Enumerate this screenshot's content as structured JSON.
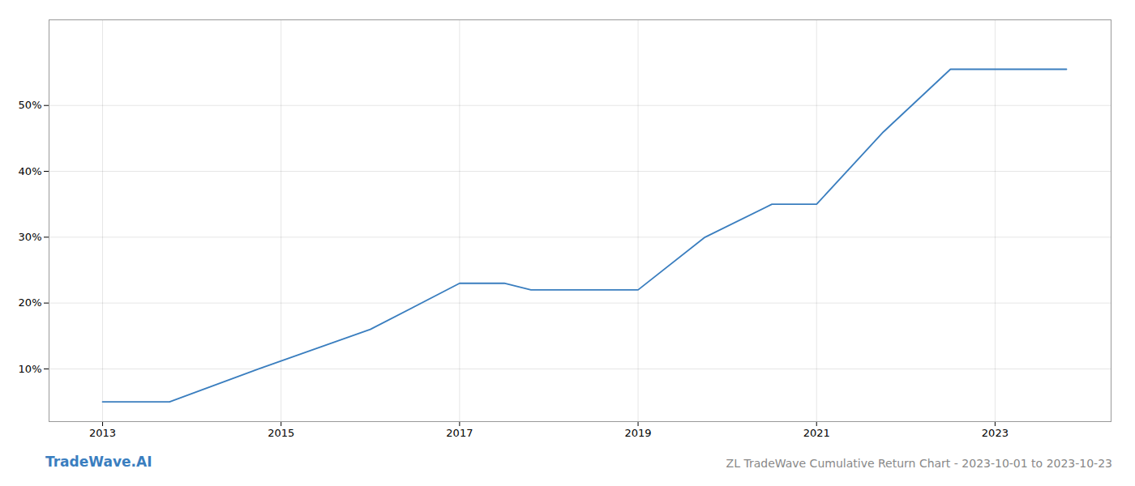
{
  "chart_data": {
    "type": "line",
    "title": "ZL TradeWave Cumulative Return Chart - 2023-10-01 to 2023-10-23",
    "annotations": [
      "TradeWave.AI"
    ],
    "x": [
      2013.0,
      2013.75,
      2014.75,
      2016.0,
      2017.0,
      2017.5,
      2017.8,
      2018.3,
      2019.0,
      2019.75,
      2020.5,
      2021.0,
      2021.75,
      2022.5,
      2023.0,
      2023.8
    ],
    "values": [
      5.0,
      5.0,
      10.0,
      16.0,
      23.0,
      23.0,
      22.0,
      22.0,
      22.0,
      30.0,
      35.0,
      35.0,
      46.0,
      55.5,
      55.5,
      55.5
    ],
    "color": "#3a7ebf",
    "xlim": [
      2012.4,
      2024.3
    ],
    "ylim": [
      2.0,
      63.0
    ],
    "xticks": [
      2013,
      2015,
      2017,
      2019,
      2021,
      2023
    ],
    "yticks": [
      {
        "value": 10,
        "label": "10%"
      },
      {
        "value": 20,
        "label": "20%"
      },
      {
        "value": 30,
        "label": "30%"
      },
      {
        "value": 40,
        "label": "40%"
      },
      {
        "value": 50,
        "label": "50%"
      }
    ],
    "grid": true
  }
}
